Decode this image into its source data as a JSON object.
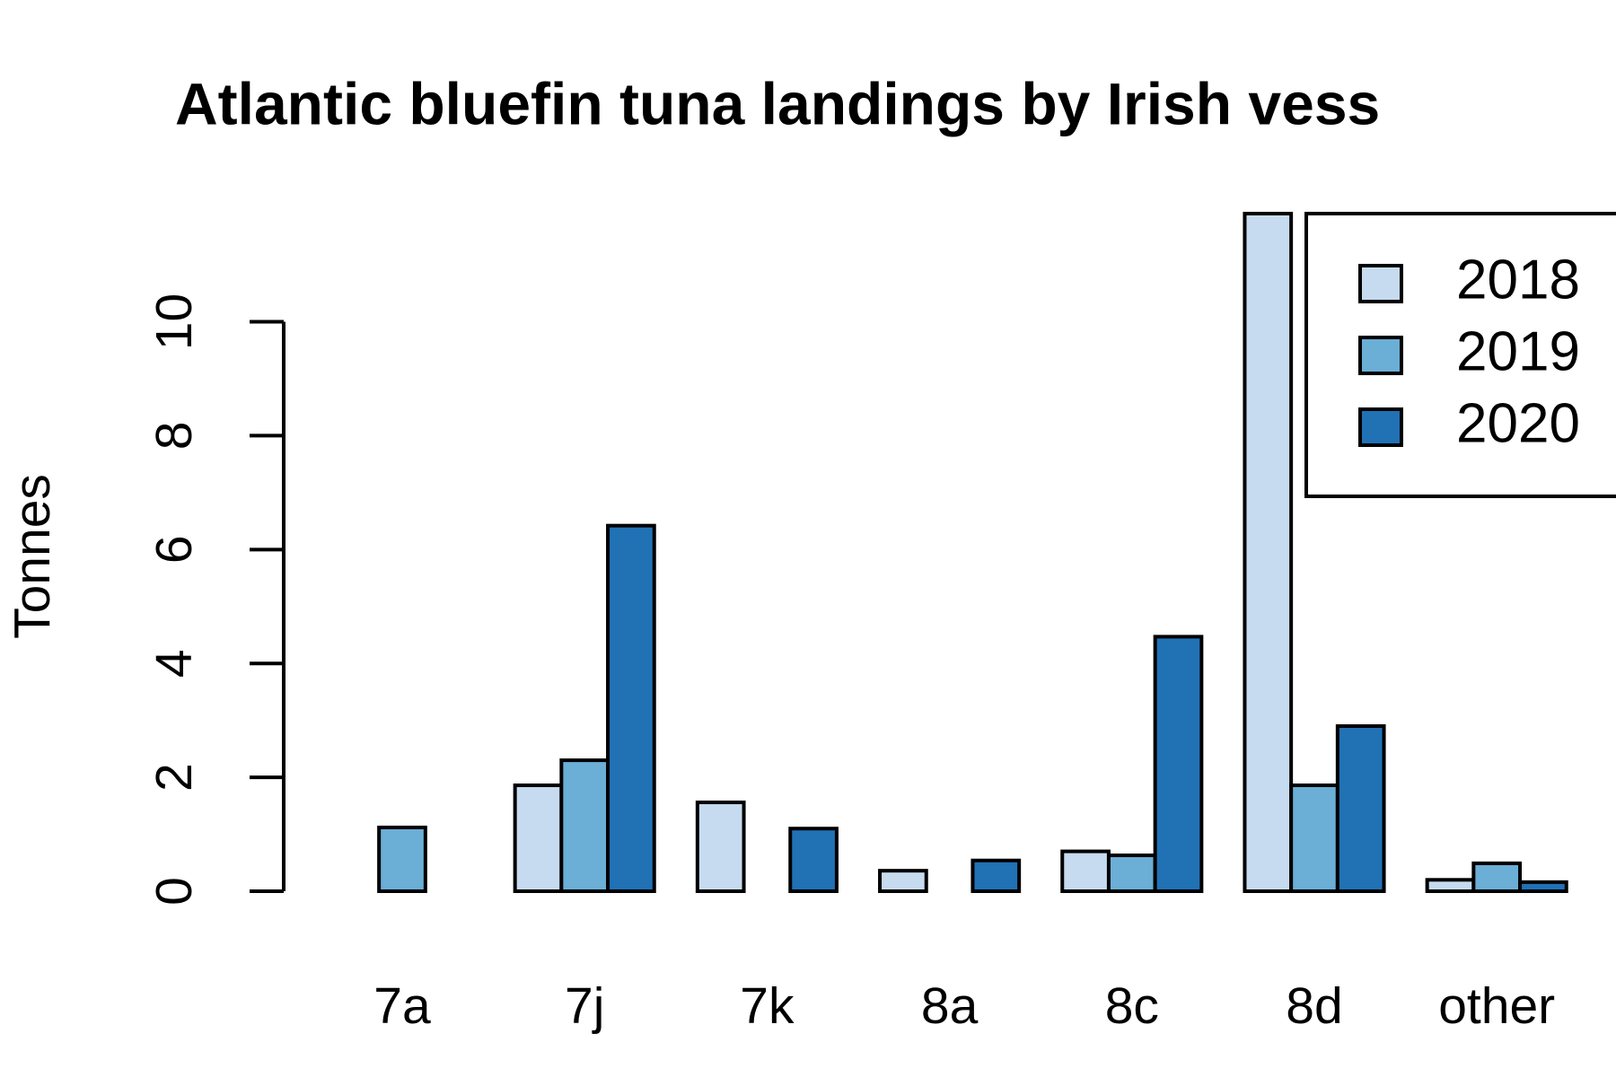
{
  "chart_data": {
    "type": "bar",
    "title": "Atlantic bluefin tuna landings by Irish vess",
    "y_label": "Tonnes",
    "categories": [
      "7a",
      "7j",
      "7k",
      "8a",
      "8c",
      "8d",
      "other"
    ],
    "series": [
      {
        "name": "2018",
        "color": "#c6dbef",
        "values": [
          0,
          1.86,
          1.56,
          0.36,
          0.7,
          11.9,
          0.2
        ]
      },
      {
        "name": "2019",
        "color": "#6baed6",
        "values": [
          1.12,
          2.3,
          0,
          0,
          0.63,
          1.86,
          0.49
        ]
      },
      {
        "name": "2020",
        "color": "#2171b5",
        "values": [
          0,
          6.42,
          1.1,
          0.54,
          4.47,
          2.9,
          0.16
        ]
      }
    ],
    "ylim": [
      0,
      11.9
    ],
    "yticks": [
      0,
      2,
      4,
      6,
      8,
      10
    ],
    "grid": false,
    "legend": "top-right"
  }
}
